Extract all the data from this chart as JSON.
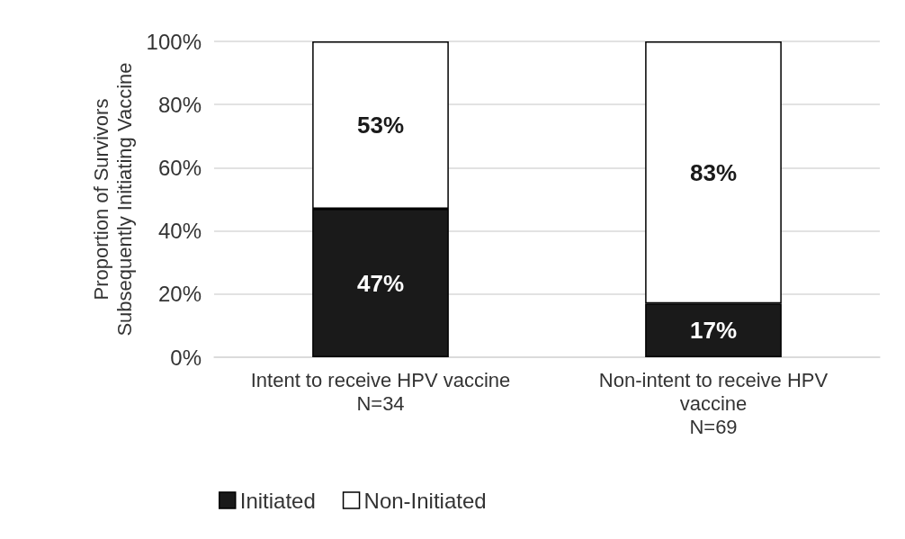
{
  "chart_data": {
    "type": "bar",
    "stacked": true,
    "ylabel": "Proportion of Survivors\nSubsequently Initiating Vaccine",
    "categories": [
      "Intent to receive HPV vaccine\nN=34",
      "Non-intent to receive HPV\nvaccine\nN=69"
    ],
    "series": [
      {
        "name": "Initiated",
        "color": "#1a1a1a",
        "values": [
          47,
          17
        ],
        "value_labels": [
          "47%",
          "17%"
        ]
      },
      {
        "name": "Non-Initiated",
        "color": "#ffffff",
        "values": [
          53,
          83
        ],
        "value_labels": [
          "53%",
          "83%"
        ]
      }
    ],
    "ylim": [
      0,
      100
    ],
    "yticks": [
      {
        "value": 0,
        "label": "0%"
      },
      {
        "value": 20,
        "label": "20%"
      },
      {
        "value": 40,
        "label": "40%"
      },
      {
        "value": 60,
        "label": "60%"
      },
      {
        "value": 80,
        "label": "80%"
      },
      {
        "value": 100,
        "label": "100%"
      }
    ],
    "grid": "y",
    "legend": "bottom"
  }
}
